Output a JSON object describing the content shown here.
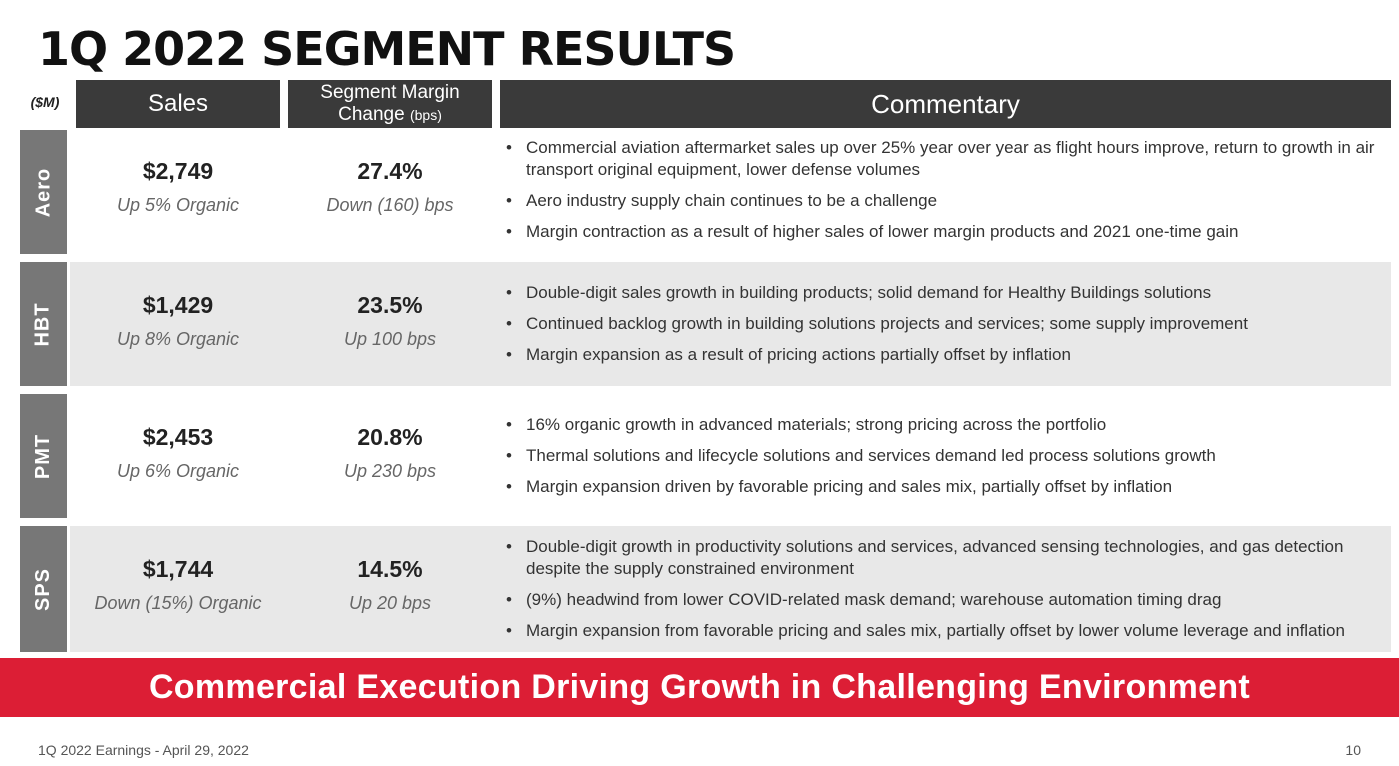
{
  "title": "1Q 2022 SEGMENT RESULTS",
  "units": "($M)",
  "headers": {
    "sales": "Sales",
    "margin_line1": "Segment Margin",
    "margin_line2": "Change",
    "margin_unit": "(bps)",
    "commentary": "Commentary"
  },
  "segments": [
    {
      "name": "Aero",
      "sales": "$2,749",
      "sales_note": "Up 5% Organic",
      "margin": "27.4%",
      "margin_note": "Down (160) bps",
      "bullets": [
        "Commercial aviation aftermarket sales up over 25% year over year as flight hours improve, return to growth in air transport original equipment, lower defense volumes",
        "Aero industry supply chain continues to be a challenge",
        "Margin contraction as a result of higher sales of lower margin products and 2021 one-time gain"
      ]
    },
    {
      "name": "HBT",
      "sales": "$1,429",
      "sales_note": "Up 8% Organic",
      "margin": "23.5%",
      "margin_note": "Up 100 bps",
      "bullets": [
        "Double-digit sales growth in building products; solid demand for Healthy Buildings solutions",
        "Continued backlog growth in building solutions projects and services; some supply improvement",
        "Margin expansion as a result of pricing actions partially offset by inflation"
      ]
    },
    {
      "name": "PMT",
      "sales": "$2,453",
      "sales_note": "Up 6% Organic",
      "margin": "20.8%",
      "margin_note": "Up 230 bps",
      "bullets": [
        "16% organic growth in advanced materials; strong pricing across the portfolio",
        "Thermal solutions and lifecycle solutions and services demand led process solutions growth",
        "Margin expansion driven by favorable pricing and sales mix, partially offset by inflation"
      ]
    },
    {
      "name": "SPS",
      "sales": "$1,744",
      "sales_note": "Down (15%) Organic",
      "margin": "14.5%",
      "margin_note": "Up 20 bps",
      "bullets": [
        "Double-digit growth in productivity solutions and services, advanced sensing technologies, and gas detection despite the supply constrained environment",
        "(9%) headwind from lower COVID-related mask demand; warehouse automation timing drag",
        "Margin expansion from favorable pricing and sales mix, partially offset by lower volume leverage and inflation"
      ]
    }
  ],
  "banner": "Commercial Execution Driving Growth in Challenging Environment",
  "footer": {
    "left": "1Q 2022 Earnings - April 29, 2022",
    "page": "10"
  }
}
